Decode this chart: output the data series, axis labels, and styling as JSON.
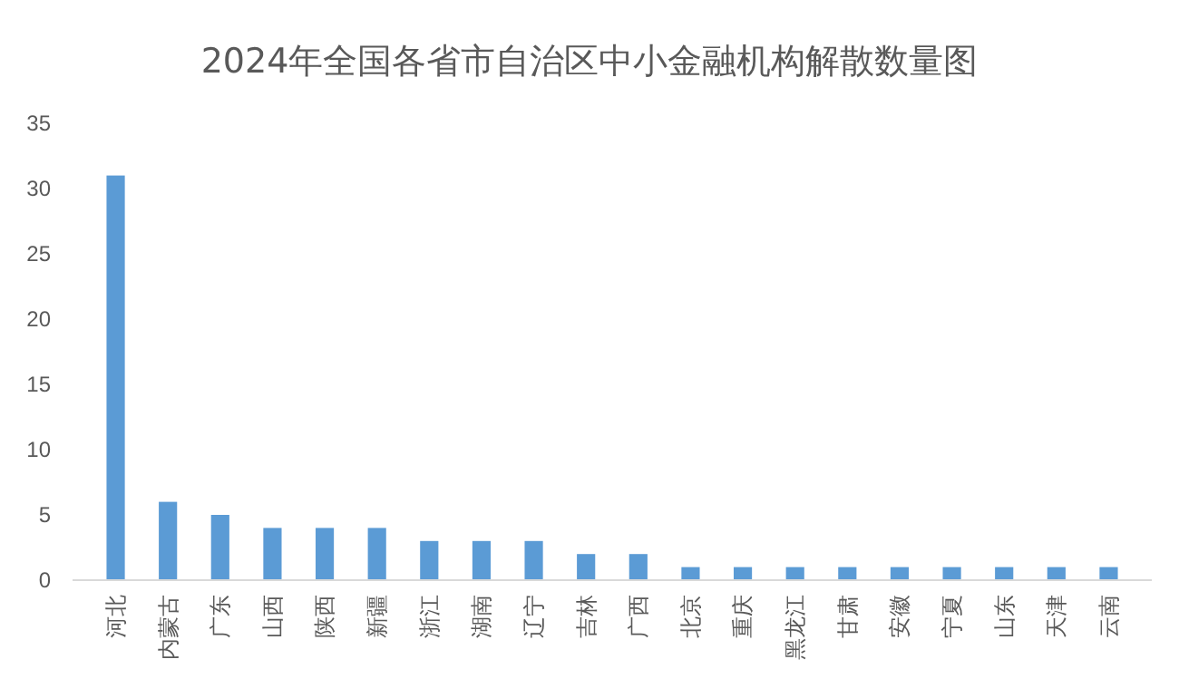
{
  "chart_data": {
    "type": "bar",
    "title": "2024年全国各省市自治区中小金融机构解散数量图",
    "categories": [
      "河北",
      "内蒙古",
      "广东",
      "山西",
      "陕西",
      "新疆",
      "浙江",
      "湖南",
      "辽宁",
      "吉林",
      "广西",
      "北京",
      "重庆",
      "黑龙江",
      "甘肃",
      "安徽",
      "宁夏",
      "山东",
      "天津",
      "云南"
    ],
    "values": [
      31,
      6,
      5,
      4,
      4,
      4,
      3,
      3,
      3,
      2,
      2,
      1,
      1,
      1,
      1,
      1,
      1,
      1,
      1,
      1
    ],
    "color": "#5b9bd5",
    "ylim": [
      0,
      35
    ],
    "yticks": [
      0,
      5,
      10,
      15,
      20,
      25,
      30,
      35
    ],
    "grid": false
  }
}
